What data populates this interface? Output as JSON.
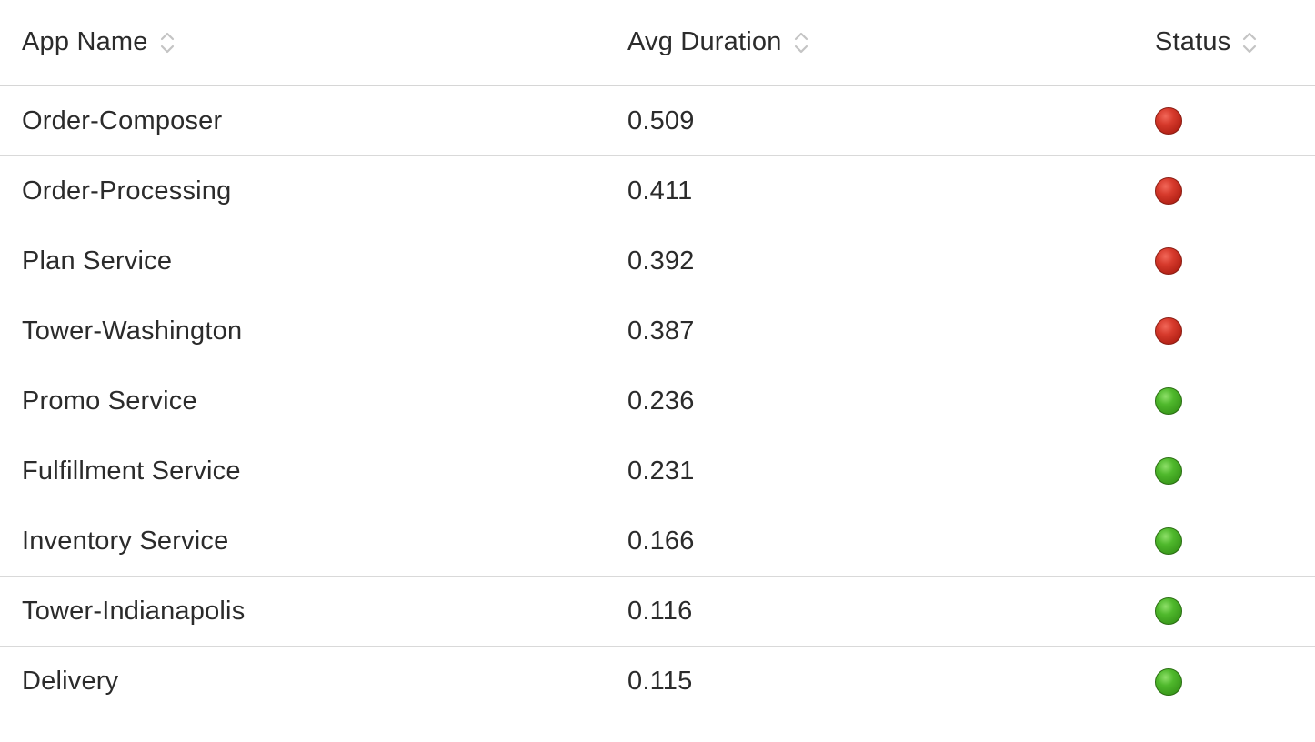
{
  "table": {
    "headers": {
      "name": "App Name",
      "duration": "Avg Duration",
      "status": "Status"
    },
    "rows": [
      {
        "name": "Order-Composer",
        "duration": "0.509",
        "status": "red"
      },
      {
        "name": "Order-Processing",
        "duration": "0.411",
        "status": "red"
      },
      {
        "name": "Plan Service",
        "duration": "0.392",
        "status": "red"
      },
      {
        "name": "Tower-Washington",
        "duration": "0.387",
        "status": "red"
      },
      {
        "name": "Promo Service",
        "duration": "0.236",
        "status": "green"
      },
      {
        "name": "Fulfillment Service",
        "duration": "0.231",
        "status": "green"
      },
      {
        "name": "Inventory Service",
        "duration": "0.166",
        "status": "green"
      },
      {
        "name": "Tower-Indianapolis",
        "duration": "0.116",
        "status": "green"
      },
      {
        "name": "Delivery",
        "duration": "0.115",
        "status": "green"
      }
    ]
  },
  "icons": {
    "sort": "sort-icon",
    "status_red": "status-red-icon",
    "status_green": "status-green-icon"
  },
  "colors": {
    "status_red": "#c8281b",
    "status_green": "#43a724",
    "divider": "#d9d9d9",
    "text": "#2b2b2b"
  }
}
